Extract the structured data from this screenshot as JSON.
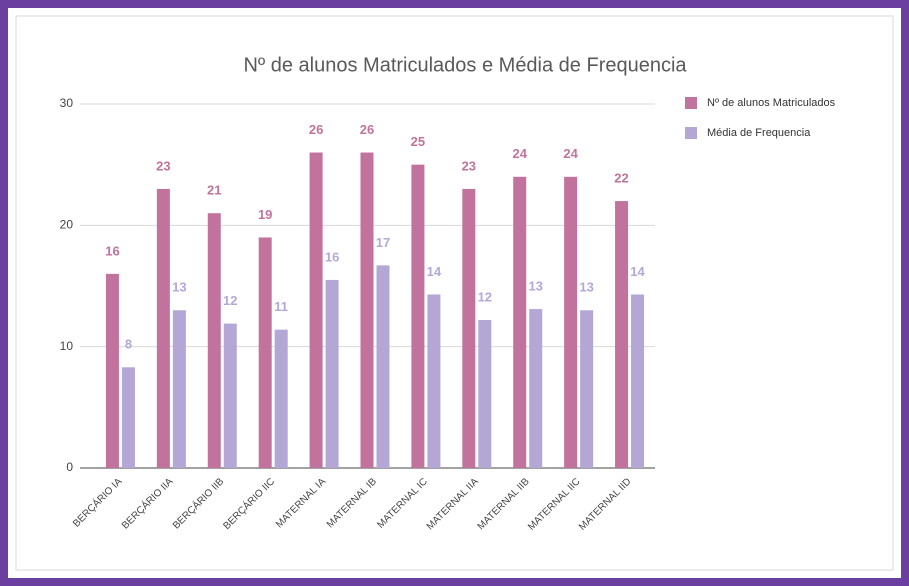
{
  "chart_data": {
    "type": "bar",
    "title": "Nº de alunos Matriculados e Média de Frequencia",
    "categories": [
      "BERÇÁRIO IA",
      "BERÇÁRIO IIA",
      "BERÇÁRIO IIB",
      "BERÇÁRIO IIC",
      "MATERNAL IA",
      "MATERNAL IB",
      "MATERNAL IC",
      "MATERNAL IIA",
      "MATERNAL IIB",
      "MATERNAL IIC",
      "MATERNAL IID"
    ],
    "series": [
      {
        "name": "Nº de alunos Matriculados",
        "color": "#c2739d",
        "values": [
          16,
          23,
          21,
          19,
          26,
          26,
          25,
          23,
          24,
          24,
          22
        ]
      },
      {
        "name": "Média de Frequencia",
        "color": "#b4a7d6",
        "values": [
          8.3,
          13,
          11.9,
          11.4,
          15.5,
          16.7,
          14.3,
          12.2,
          13.1,
          13,
          14.3
        ],
        "value_labels": [
          "8",
          "13",
          "12",
          "11",
          "16",
          "17",
          "14",
          "12",
          "13",
          "13",
          "14"
        ]
      }
    ],
    "ylim": [
      0,
      30
    ],
    "yticks": [
      0,
      10,
      20,
      30
    ],
    "grid": true,
    "legend": "right"
  }
}
